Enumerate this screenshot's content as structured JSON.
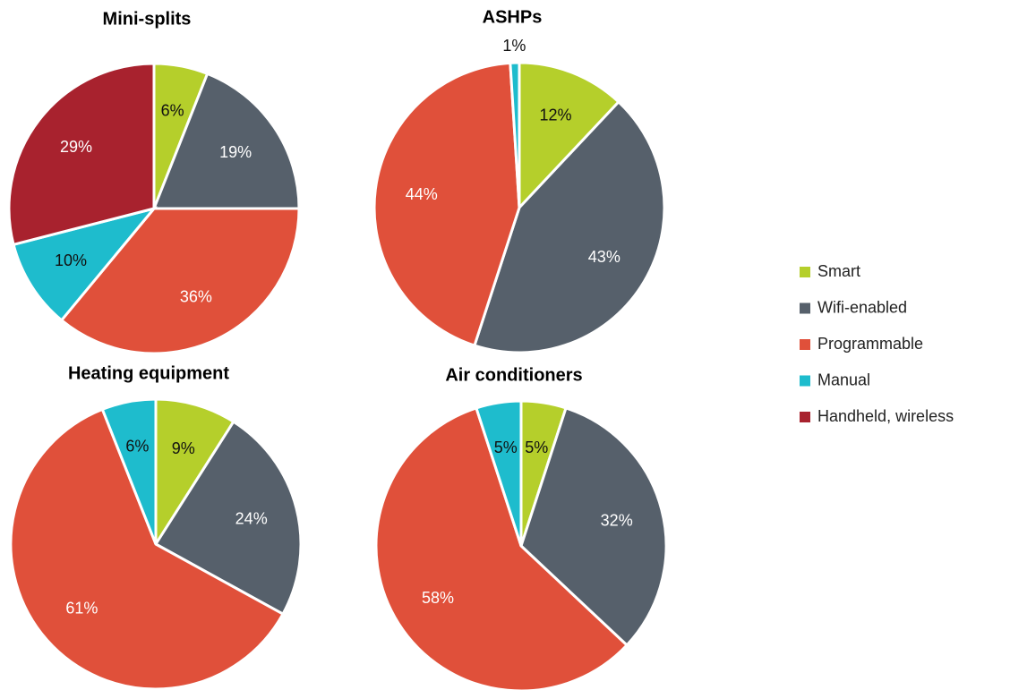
{
  "chart_data": [
    {
      "type": "pie",
      "title": "Mini-splits",
      "categories": [
        "Smart",
        "Wifi-enabled",
        "Programmable",
        "Manual",
        "Handheld, wireless"
      ],
      "values": [
        6,
        19,
        36,
        10,
        29
      ],
      "value_labels": [
        "6%",
        "19%",
        "36%",
        "10%",
        "29%"
      ],
      "colors": [
        "#b5cf2b",
        "#56606b",
        "#e0503a",
        "#1ebccd",
        "#a8222e"
      ]
    },
    {
      "type": "pie",
      "title": "ASHPs",
      "categories": [
        "Smart",
        "Wifi-enabled",
        "Programmable",
        "Manual"
      ],
      "values": [
        12,
        43,
        44,
        1
      ],
      "value_labels": [
        "12%",
        "43%",
        "44%",
        "1%"
      ],
      "colors": [
        "#b5cf2b",
        "#56606b",
        "#e0503a",
        "#1ebccd"
      ]
    },
    {
      "type": "pie",
      "title": "Heating equipment",
      "categories": [
        "Smart",
        "Wifi-enabled",
        "Programmable",
        "Manual"
      ],
      "values": [
        9,
        24,
        61,
        6
      ],
      "value_labels": [
        "9%",
        "24%",
        "61%",
        "6%"
      ],
      "colors": [
        "#b5cf2b",
        "#56606b",
        "#e0503a",
        "#1ebccd"
      ]
    },
    {
      "type": "pie",
      "title": "Air conditioners",
      "categories": [
        "Smart",
        "Wifi-enabled",
        "Programmable",
        "Manual"
      ],
      "values": [
        5,
        32,
        58,
        5
      ],
      "value_labels": [
        "5%",
        "32%",
        "58%",
        "5%"
      ],
      "colors": [
        "#b5cf2b",
        "#56606b",
        "#e0503a",
        "#1ebccd"
      ]
    }
  ]
}
